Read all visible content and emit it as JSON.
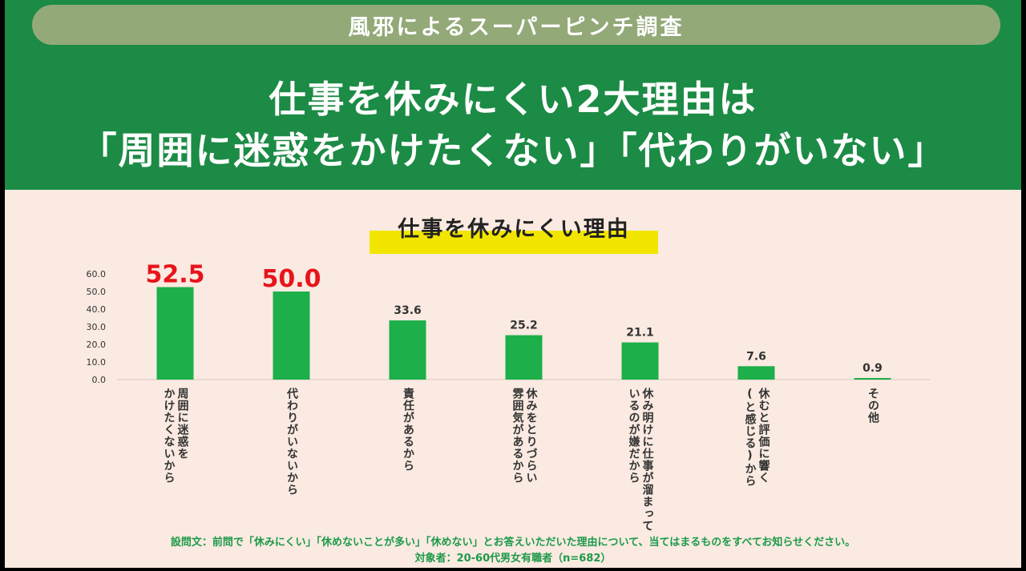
{
  "header": {
    "survey_title": "風邪によるスーパーピンチ調査",
    "headline_line1": "仕事を休みにくい2大理由は",
    "headline_line2": "「周囲に迷惑をかけたくない」「代わりがいない」"
  },
  "chart_data": {
    "type": "bar",
    "title": "仕事を休みにくい理由",
    "categories": [
      "周囲に迷惑を\nかけたくないから",
      "代わりがいないから",
      "責任があるから",
      "休みをとりづらい\n雰囲気があるから",
      "休み明けに仕事が溜まって\nいるのが嫌だから",
      "休むと評価に響く\n(と感じる)から",
      "その他"
    ],
    "values": [
      52.5,
      50.0,
      33.6,
      25.2,
      21.1,
      7.6,
      0.9
    ],
    "value_labels": [
      "52.5",
      "50.0",
      "33.6",
      "25.2",
      "21.1",
      "7.6",
      "0.9"
    ],
    "highlighted": [
      true,
      true,
      false,
      false,
      false,
      false,
      false
    ],
    "ylim": [
      0,
      60
    ],
    "yticks": [
      "0.0",
      "10.0",
      "20.0",
      "30.0",
      "40.0",
      "50.0",
      "60.0"
    ],
    "grid": false,
    "colors": {
      "bar": "#1daf4a",
      "highlight_label": "#e8141b",
      "label": "#333333"
    }
  },
  "footer": {
    "question": "設問文：前問で「休みにくい」「休めないことが多い」「休めない」とお答えいただいた理由について、当てはまるものをすべてお知らせください。",
    "target": "対象者：20-60代男女有職者（n=682）"
  }
}
